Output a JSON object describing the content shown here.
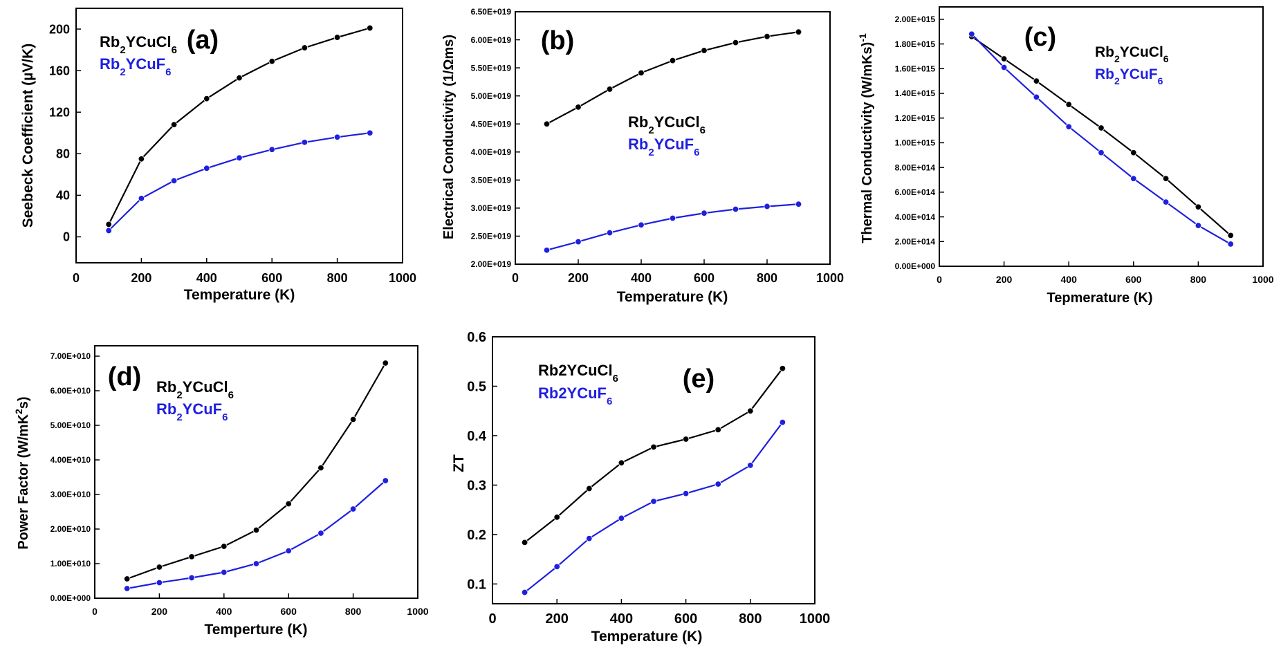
{
  "colors": {
    "series_cl": "#000000",
    "series_f": "#1f1fe0"
  },
  "chart_data": [
    {
      "type": "line",
      "panel_label": "(a)",
      "x": [
        100,
        200,
        300,
        400,
        500,
        600,
        700,
        800,
        900
      ],
      "xlim": [
        0,
        1000
      ],
      "ylim": [
        -25,
        220
      ],
      "xticks": [
        "0",
        "200",
        "400",
        "600",
        "800",
        "1000"
      ],
      "yticks": [
        "0",
        "40",
        "80",
        "120",
        "160",
        "200"
      ],
      "xlabel": "Temperature (K)",
      "ylabel": "Seebeck Coefficient (µV/K)",
      "legend_position": "top-left",
      "series": [
        {
          "name_main": "Rb",
          "name_sub1": "2",
          "name_mid": "YCuCl",
          "name_sub2": "6",
          "color": "#000000",
          "values": [
            12,
            75,
            108,
            133,
            153,
            169,
            182,
            192,
            201
          ]
        },
        {
          "name_main": "Rb",
          "name_sub1": "2",
          "name_mid": "YCuF",
          "name_sub2": "6",
          "color": "#1f1fe0",
          "values": [
            6,
            37,
            54,
            66,
            76,
            84,
            91,
            96,
            100
          ]
        }
      ]
    },
    {
      "type": "line",
      "panel_label": "(b)",
      "x": [
        100,
        200,
        300,
        400,
        500,
        600,
        700,
        800,
        900
      ],
      "xlim": [
        0,
        1000
      ],
      "ylim": [
        2e+19,
        6.5e+19
      ],
      "xticks": [
        "0",
        "200",
        "400",
        "600",
        "800",
        "1000"
      ],
      "yticks": [
        "2.00E+019",
        "2.50E+019",
        "3.00E+019",
        "3.50E+019",
        "4.00E+019",
        "4.50E+019",
        "5.00E+019",
        "5.50E+019",
        "6.00E+019",
        "6.50E+019"
      ],
      "xlabel": "Temperature (K)",
      "ylabel": "Electrical Conductivity (1/Ωms)",
      "legend_position": "center",
      "series": [
        {
          "name_main": "Rb",
          "name_sub1": "2",
          "name_mid": "YCuCl",
          "name_sub2": "6",
          "color": "#000000",
          "values": [
            4.5e+19,
            4.8e+19,
            5.12e+19,
            5.41e+19,
            5.63e+19,
            5.81e+19,
            5.95e+19,
            6.06e+19,
            6.14e+19
          ]
        },
        {
          "name_main": "Rb",
          "name_sub1": "2",
          "name_mid": "YCuF",
          "name_sub2": "6",
          "color": "#1f1fe0",
          "values": [
            2.25e+19,
            2.4e+19,
            2.56e+19,
            2.7e+19,
            2.82e+19,
            2.91e+19,
            2.98e+19,
            3.03e+19,
            3.07e+19
          ]
        }
      ]
    },
    {
      "type": "line",
      "panel_label": "(c)",
      "x": [
        100,
        200,
        300,
        400,
        500,
        600,
        700,
        800,
        900
      ],
      "xlim": [
        0,
        1000
      ],
      "ylim": [
        0,
        2100000000000000.0
      ],
      "xticks": [
        "0",
        "200",
        "400",
        "600",
        "800",
        "1000"
      ],
      "yticks": [
        "0.00E+000",
        "2.00E+014",
        "4.00E+014",
        "6.00E+014",
        "8.00E+014",
        "1.00E+015",
        "1.20E+015",
        "1.40E+015",
        "1.60E+015",
        "1.80E+015",
        "2.00E+015"
      ],
      "xlabel": "Tepmerature (K)",
      "ylabel_main": "Thermal Conductivity (W/mKs)",
      "ylabel_sup": "-1",
      "legend_position": "top-right",
      "series": [
        {
          "name_main": "Rb",
          "name_sub1": "2",
          "name_mid": "YCuCl",
          "name_sub2": "6",
          "color": "#000000",
          "values": [
            1860000000000000.0,
            1680000000000000.0,
            1500000000000000.0,
            1310000000000000.0,
            1120000000000000.0,
            920000000000000.0,
            710000000000000.0,
            480000000000000.0,
            250000000000000.0
          ]
        },
        {
          "name_main": "Rb",
          "name_sub1": "2",
          "name_mid": "YCuF",
          "name_sub2": "6",
          "color": "#1f1fe0",
          "values": [
            1880000000000000.0,
            1610000000000000.0,
            1370000000000000.0,
            1130000000000000.0,
            920000000000000.0,
            710000000000000.0,
            520000000000000.0,
            330000000000000.0,
            180000000000000.0
          ]
        }
      ]
    },
    {
      "type": "line",
      "panel_label": "(d)",
      "x": [
        100,
        200,
        300,
        400,
        500,
        600,
        700,
        800,
        900
      ],
      "xlim": [
        0,
        1000
      ],
      "ylim": [
        0,
        73000000000.0
      ],
      "xticks": [
        "0",
        "200",
        "400",
        "600",
        "800",
        "1000"
      ],
      "yticks": [
        "0.00E+000",
        "1.00E+010",
        "2.00E+010",
        "3.00E+010",
        "4.00E+010",
        "5.00E+010",
        "6.00E+010",
        "7.00E+010"
      ],
      "xlabel": "Temperture (K)",
      "ylabel_main": "Power Factor (W/mK",
      "ylabel_sup": "2",
      "ylabel_end": "s)",
      "legend_position": "top-left",
      "series": [
        {
          "name_main": "Rb",
          "name_sub1": "2",
          "name_mid": "YCuCl",
          "name_sub2": "6",
          "color": "#000000",
          "values": [
            5600000000.0,
            9000000000.0,
            12000000000.0,
            15000000000.0,
            19700000000.0,
            27300000000.0,
            37700000000.0,
            51700000000.0,
            68000000000.0
          ]
        },
        {
          "name_main": "Rb",
          "name_sub1": "2",
          "name_mid": "YCuF",
          "name_sub2": "6",
          "color": "#1f1fe0",
          "values": [
            2800000000.0,
            4500000000.0,
            5900000000.0,
            7500000000.0,
            10000000000.0,
            13700000000.0,
            18800000000.0,
            25800000000.0,
            34000000000.0
          ]
        }
      ]
    },
    {
      "type": "line",
      "panel_label": "(e)",
      "x": [
        100,
        200,
        300,
        400,
        500,
        600,
        700,
        800,
        900
      ],
      "xlim": [
        0,
        1000
      ],
      "ylim": [
        0.06,
        0.6
      ],
      "xticks": [
        "0",
        "200",
        "400",
        "600",
        "800",
        "1000"
      ],
      "yticks": [
        "0.1",
        "0.2",
        "0.3",
        "0.4",
        "0.5",
        "0.6"
      ],
      "xlabel": "Temperature (K)",
      "ylabel": "ZT",
      "legend_position": "top-left",
      "series": [
        {
          "name_main": "Rb2YCuCl",
          "name_sub1": "",
          "name_mid": "",
          "name_sub2": "6",
          "color": "#000000",
          "values": [
            0.184,
            0.235,
            0.293,
            0.345,
            0.377,
            0.393,
            0.412,
            0.45,
            0.536
          ]
        },
        {
          "name_main": "Rb2YCuF",
          "name_sub1": "",
          "name_mid": "",
          "name_sub2": "6",
          "color": "#1f1fe0",
          "values": [
            0.083,
            0.135,
            0.192,
            0.233,
            0.267,
            0.283,
            0.302,
            0.34,
            0.427
          ]
        }
      ]
    }
  ]
}
